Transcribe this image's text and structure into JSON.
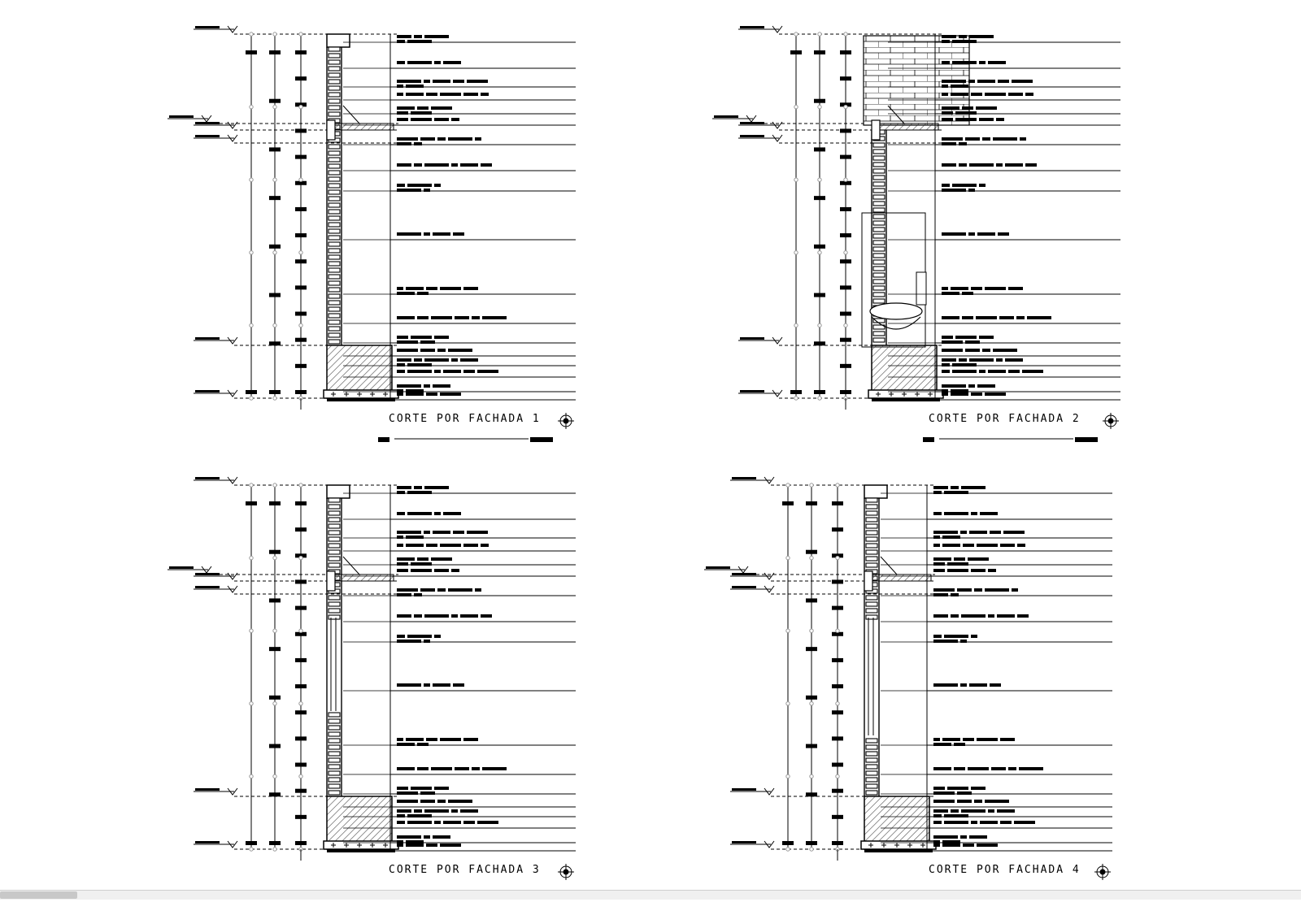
{
  "drawing": {
    "panels": [
      {
        "title": "CORTE POR FACHADA 1",
        "variant": "plain"
      },
      {
        "title": "CORTE POR FACHADA 2",
        "variant": "bath"
      },
      {
        "title": "CORTE POR FACHADA 3",
        "variant": "window"
      },
      {
        "title": "CORTE POR FACHADA 4",
        "variant": "window-tall"
      }
    ],
    "colors": {
      "ink": "#000000",
      "hatch": "#555555",
      "gray_dash": "#999999"
    }
  }
}
